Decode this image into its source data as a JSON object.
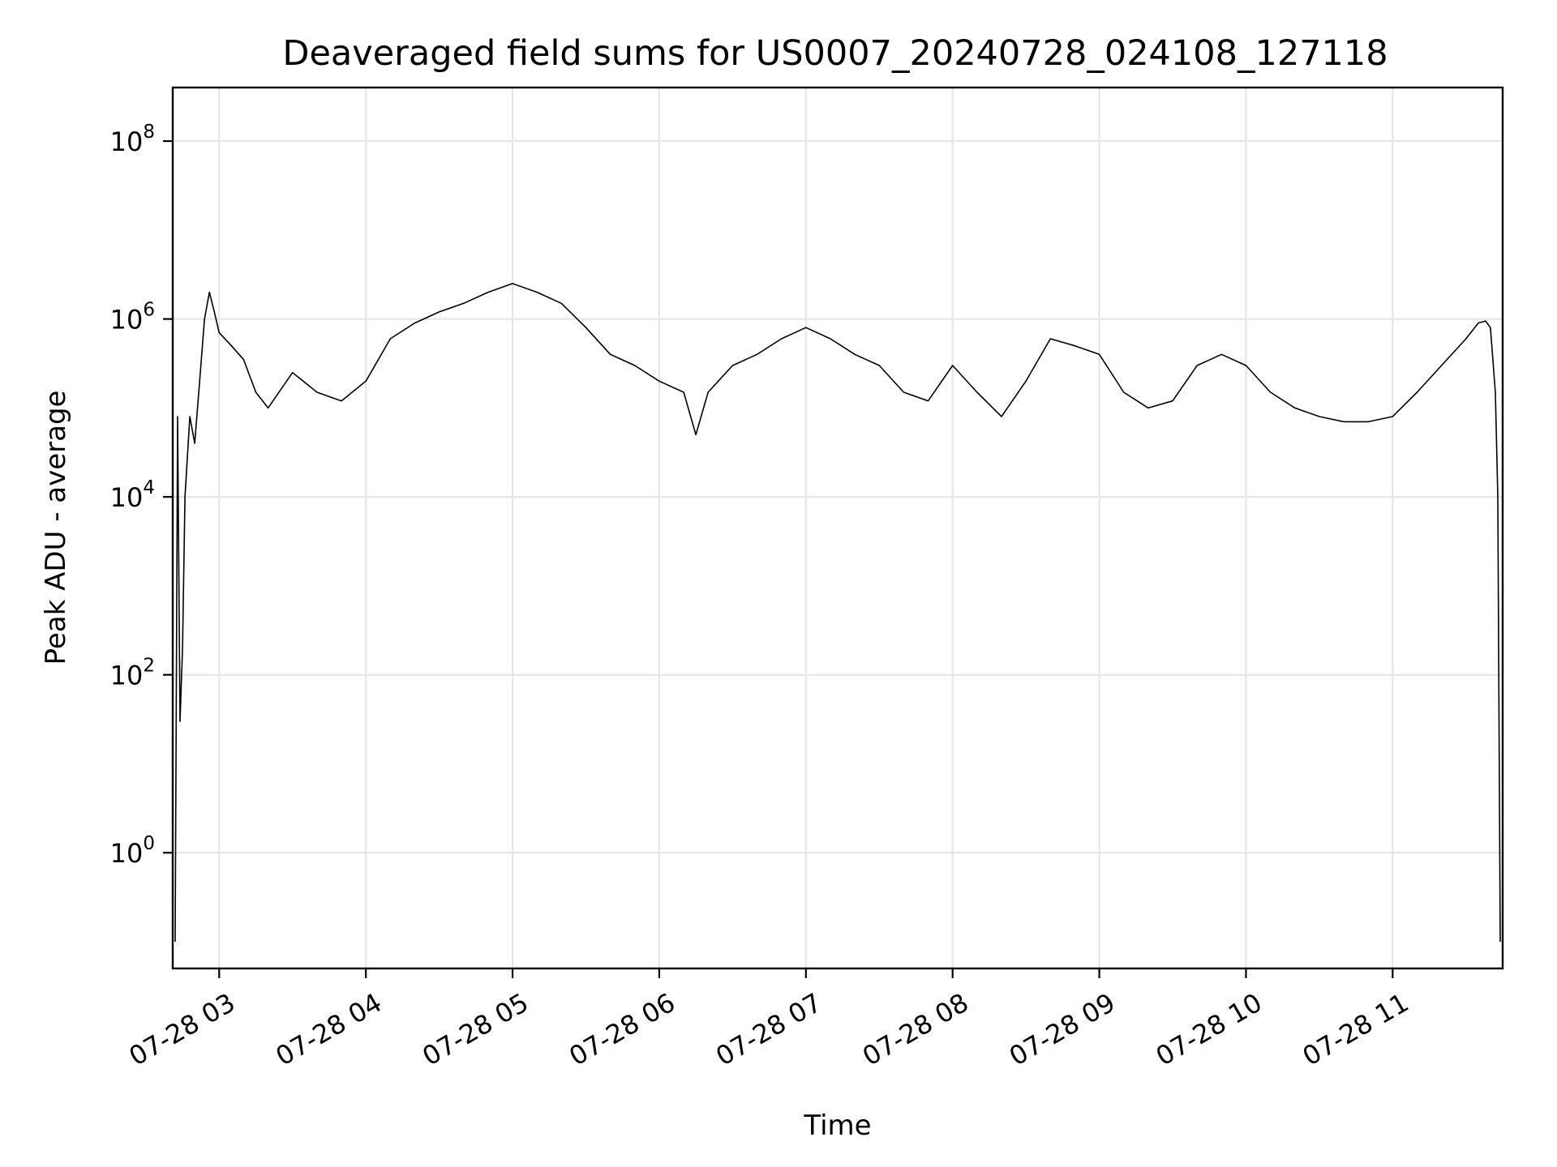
{
  "chart_data": {
    "type": "line",
    "title": "Deaveraged field sums for US0007_20240728_024108_127118",
    "xlabel": "Time",
    "ylabel": "Peak ADU - average",
    "yscale": "log",
    "xlim": [
      "2024-07-28 02:41",
      "2024-07-28 11:45"
    ],
    "ylim": [
      0.05,
      400000000
    ],
    "x_ticks": [
      "07-28 03",
      "07-28 04",
      "07-28 05",
      "07-28 06",
      "07-28 07",
      "07-28 08",
      "07-28 09",
      "07-28 10",
      "07-28 11"
    ],
    "y_ticks": [
      {
        "value": 1,
        "base": "10",
        "exp": "0"
      },
      {
        "value": 100,
        "base": "10",
        "exp": "2"
      },
      {
        "value": 10000,
        "base": "10",
        "exp": "4"
      },
      {
        "value": 1000000,
        "base": "10",
        "exp": "6"
      },
      {
        "value": 100000000,
        "base": "10",
        "exp": "8"
      }
    ],
    "grid": true,
    "line_color": "#000000",
    "series": [
      {
        "x": [
          "2024-07-28 02:42",
          "2024-07-28 02:43",
          "2024-07-28 02:44",
          "2024-07-28 02:45",
          "2024-07-28 02:46",
          "2024-07-28 02:48",
          "2024-07-28 02:50",
          "2024-07-28 02:52",
          "2024-07-28 02:54",
          "2024-07-28 02:56",
          "2024-07-28 02:58",
          "2024-07-28 03:00",
          "2024-07-28 03:05",
          "2024-07-28 03:10",
          "2024-07-28 03:15",
          "2024-07-28 03:20",
          "2024-07-28 03:30",
          "2024-07-28 03:40",
          "2024-07-28 03:50",
          "2024-07-28 04:00",
          "2024-07-28 04:10",
          "2024-07-28 04:20",
          "2024-07-28 04:30",
          "2024-07-28 04:40",
          "2024-07-28 04:50",
          "2024-07-28 05:00",
          "2024-07-28 05:10",
          "2024-07-28 05:20",
          "2024-07-28 05:30",
          "2024-07-28 05:40",
          "2024-07-28 05:50",
          "2024-07-28 06:00",
          "2024-07-28 06:10",
          "2024-07-28 06:15",
          "2024-07-28 06:20",
          "2024-07-28 06:30",
          "2024-07-28 06:40",
          "2024-07-28 06:50",
          "2024-07-28 07:00",
          "2024-07-28 07:10",
          "2024-07-28 07:20",
          "2024-07-28 07:30",
          "2024-07-28 07:40",
          "2024-07-28 07:50",
          "2024-07-28 08:00",
          "2024-07-28 08:10",
          "2024-07-28 08:20",
          "2024-07-28 08:30",
          "2024-07-28 08:40",
          "2024-07-28 08:50",
          "2024-07-28 09:00",
          "2024-07-28 09:10",
          "2024-07-28 09:20",
          "2024-07-28 09:30",
          "2024-07-28 09:40",
          "2024-07-28 09:50",
          "2024-07-28 10:00",
          "2024-07-28 10:10",
          "2024-07-28 10:20",
          "2024-07-28 10:30",
          "2024-07-28 10:40",
          "2024-07-28 10:50",
          "2024-07-28 11:00",
          "2024-07-28 11:10",
          "2024-07-28 11:20",
          "2024-07-28 11:30",
          "2024-07-28 11:35",
          "2024-07-28 11:38",
          "2024-07-28 11:40",
          "2024-07-28 11:42",
          "2024-07-28 11:43",
          "2024-07-28 11:44"
        ],
        "y": [
          0.1,
          80000,
          30,
          200,
          10000,
          80000,
          40000,
          200000,
          1000000,
          2000000,
          1200000,
          700000,
          500000,
          350000,
          150000,
          100000,
          250000,
          150000,
          120000,
          200000,
          600000,
          900000,
          1200000,
          1500000,
          2000000,
          2500000,
          2000000,
          1500000,
          800000,
          400000,
          300000,
          200000,
          150000,
          50000,
          150000,
          300000,
          400000,
          600000,
          800000,
          600000,
          400000,
          300000,
          150000,
          120000,
          300000,
          150000,
          80000,
          200000,
          600000,
          500000,
          400000,
          150000,
          100000,
          120000,
          300000,
          400000,
          300000,
          150000,
          100000,
          80000,
          70000,
          70000,
          80000,
          150000,
          300000,
          600000,
          900000,
          950000,
          800000,
          150000,
          10000,
          0.1
        ]
      }
    ]
  }
}
